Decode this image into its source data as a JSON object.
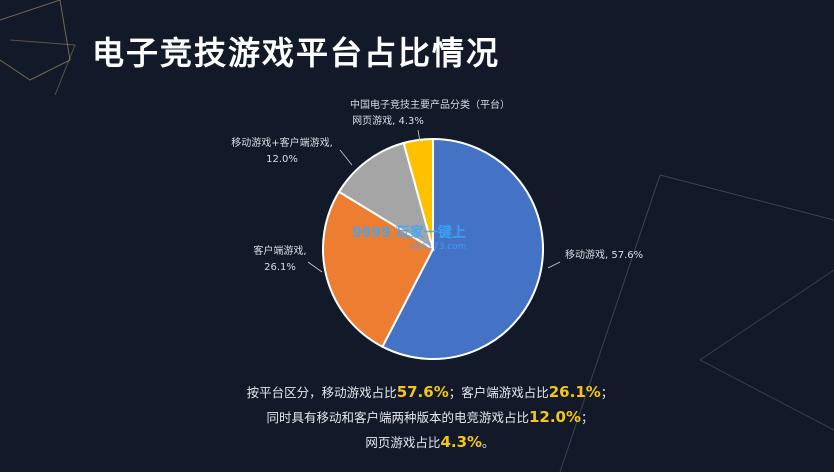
{
  "slide": {
    "title": "电子竞技游戏平台占比情况"
  },
  "chart_data": {
    "type": "pie",
    "title": "中国电子竞技主要产品分类（平台）",
    "slices": [
      {
        "name": "移动游戏",
        "value": 57.6,
        "value_label": "57.6%",
        "color": "#4472c4"
      },
      {
        "name": "客户端游戏",
        "value": 26.1,
        "value_label": "26.1%",
        "color": "#ed7d31"
      },
      {
        "name": "移动游戏+客户端游戏",
        "value": 12.0,
        "value_label": "12.0%",
        "color": "#a5a5a5"
      },
      {
        "name": "网页游戏",
        "value": 4.3,
        "value_label": "4.3%",
        "color": "#ffc000"
      }
    ]
  },
  "watermark": {
    "text": "9999 玩家一键上",
    "sub": "666173.com"
  },
  "summary": {
    "line1_a": "按平台区分，移动游戏占比",
    "line1_v1": "57.6%",
    "line1_b": "；客户端游戏占比",
    "line1_v2": "26.1%",
    "line1_c": "；",
    "line2_a": "同时具有移动和客户端两种版本的电竞游戏占比",
    "line2_v": "12.0%",
    "line2_b": "；",
    "line3_a": "网页游戏占比",
    "line3_v": "4.3%",
    "line3_b": "。"
  }
}
